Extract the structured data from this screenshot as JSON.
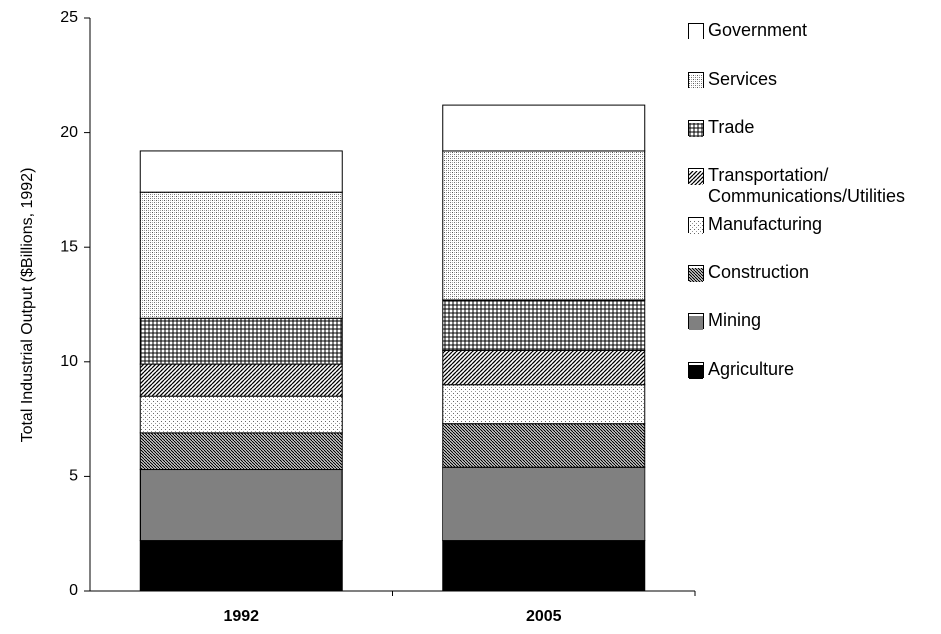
{
  "chart_data": {
    "type": "stacked_bar",
    "y_label": "Total Industrial Output ($Billions, 1992)",
    "categories": [
      "1992",
      "2005"
    ],
    "ylim": [
      0,
      25
    ],
    "yticks": [
      0,
      5,
      10,
      15,
      20,
      25
    ],
    "series": [
      {
        "name": "Agriculture",
        "color": "#000000",
        "pattern": "solid",
        "values": [
          2.2,
          2.2
        ]
      },
      {
        "name": "Mining",
        "color": "#000000",
        "pattern": "vertical",
        "values": [
          3.1,
          3.2
        ]
      },
      {
        "name": "Construction",
        "color": "#000000",
        "pattern": "diagonal-back",
        "values": [
          1.6,
          1.9
        ]
      },
      {
        "name": "Manufacturing",
        "color": "#000000",
        "pattern": "dots",
        "values": [
          1.6,
          1.7
        ]
      },
      {
        "name": "Transportation/\nCommunications/Utilities",
        "color": "#000000",
        "pattern": "diagonal",
        "values": [
          1.4,
          1.5
        ]
      },
      {
        "name": "Trade",
        "color": "#000000",
        "pattern": "grid",
        "values": [
          2.0,
          2.2
        ]
      },
      {
        "name": "Services",
        "color": "#000000",
        "pattern": "fine-grid",
        "values": [
          5.5,
          6.5
        ]
      },
      {
        "name": "Government",
        "color": "#000000",
        "pattern": "none",
        "values": [
          1.8,
          2.0
        ]
      }
    ]
  }
}
